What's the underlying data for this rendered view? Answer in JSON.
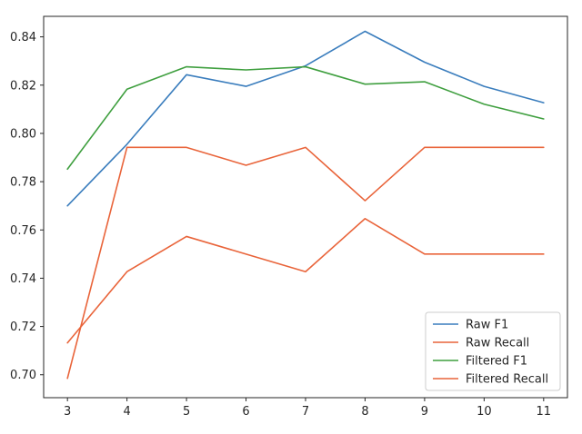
{
  "chart_data": {
    "type": "line",
    "title": "",
    "xlabel": "",
    "ylabel": "",
    "x": [
      3,
      4,
      5,
      6,
      7,
      8,
      9,
      10,
      11
    ],
    "xlim": [
      2.6,
      11.4
    ],
    "ylim": [
      0.6905,
      0.8485
    ],
    "xticks": [
      3,
      4,
      5,
      6,
      7,
      8,
      9,
      10,
      11
    ],
    "yticks": [
      0.7,
      0.72,
      0.74,
      0.76,
      0.78,
      0.8,
      0.82,
      0.84
    ],
    "ytick_labels": [
      "0.70",
      "0.72",
      "0.74",
      "0.76",
      "0.78",
      "0.80",
      "0.82",
      "0.84"
    ],
    "grid": false,
    "legend_position": "bottom-right",
    "series": [
      {
        "name": "Raw F1",
        "color": "#3a7dbd",
        "values": [
          0.77,
          0.7955,
          0.8243,
          0.8195,
          0.828,
          0.8423,
          0.8295,
          0.8195,
          0.8127
        ]
      },
      {
        "name": "Raw Recall",
        "color": "#e9643a",
        "values": [
          0.7132,
          0.7427,
          0.7573,
          0.75,
          0.7427,
          0.7647,
          0.75,
          0.75,
          0.75
        ]
      },
      {
        "name": "Filtered F1",
        "color": "#3f9f3f",
        "values": [
          0.7852,
          0.8183,
          0.8276,
          0.8263,
          0.8276,
          0.8204,
          0.8214,
          0.8121,
          0.806
        ]
      },
      {
        "name": "Filtered Recall",
        "color": "#e9643a",
        "values": [
          0.6985,
          0.7942,
          0.7942,
          0.7868,
          0.7942,
          0.7721,
          0.7942,
          0.7942,
          0.7942
        ]
      }
    ]
  }
}
